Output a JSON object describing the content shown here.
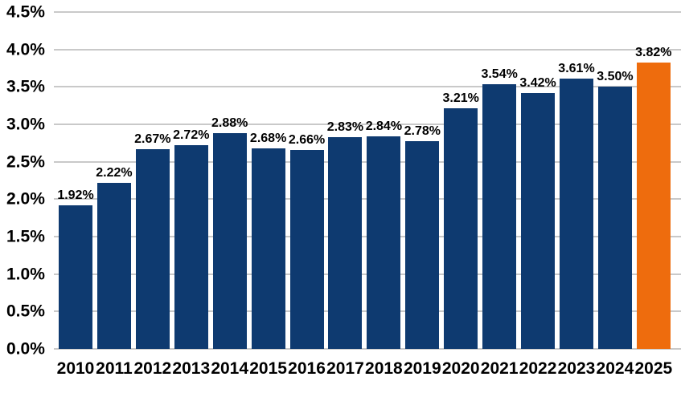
{
  "chart_data": {
    "type": "bar",
    "title": "",
    "xlabel": "",
    "ylabel": "",
    "categories": [
      "2010",
      "2011",
      "2012",
      "2013",
      "2014",
      "2015",
      "2016",
      "2017",
      "2018",
      "2019",
      "2020",
      "2021",
      "2022",
      "2023",
      "2024",
      "2025"
    ],
    "values": [
      1.92,
      2.22,
      2.67,
      2.72,
      2.88,
      2.68,
      2.66,
      2.83,
      2.84,
      2.78,
      3.21,
      3.54,
      3.42,
      3.61,
      3.5,
      3.82
    ],
    "labels": [
      "1.92%",
      "2.22%",
      "2.67%",
      "2.72%",
      "2.88%",
      "2.68%",
      "2.66%",
      "2.83%",
      "2.84%",
      "2.78%",
      "3.21%",
      "3.54%",
      "3.42%",
      "3.61%",
      "3.50%",
      "3.82%"
    ],
    "ylim": [
      0,
      4.5
    ],
    "ytick_step": 0.5,
    "ytick_labels": [
      "0.0%",
      "0.5%",
      "1.0%",
      "1.5%",
      "2.0%",
      "2.5%",
      "3.0%",
      "3.5%",
      "4.0%",
      "4.5%"
    ],
    "grid": true,
    "legend": false,
    "bar_color": "#0e3a70",
    "highlight_color": "#ee6c0d",
    "highlight_index": 15,
    "gridline_color": "#c9c9c9",
    "text_color": "#000000"
  }
}
